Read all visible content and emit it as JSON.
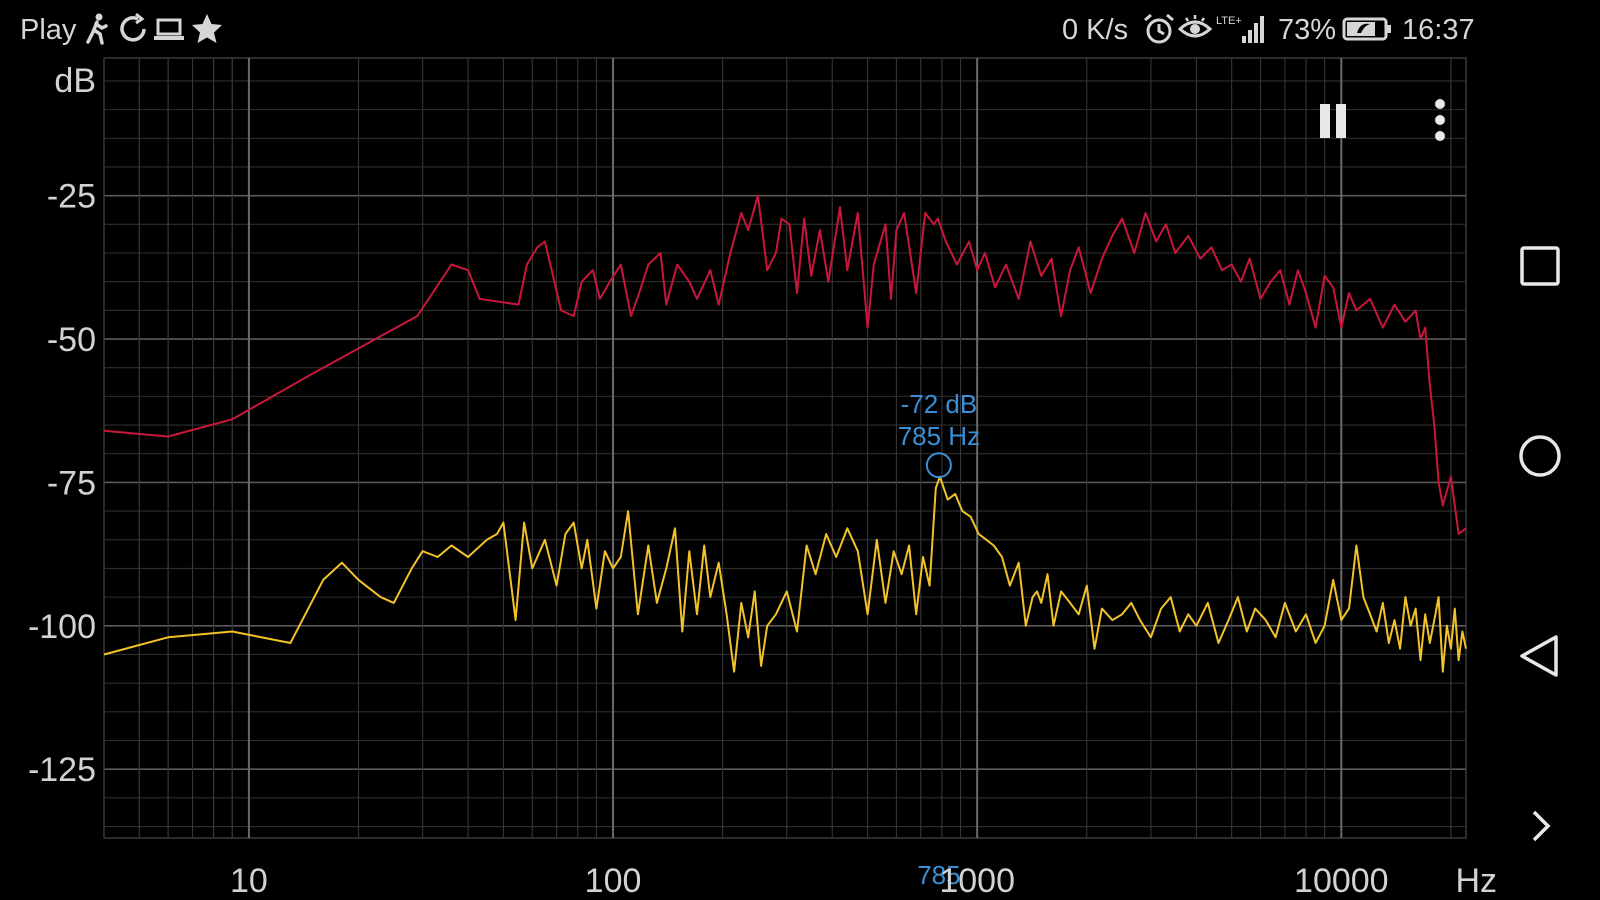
{
  "status_bar": {
    "app_label": "Play",
    "left_icons": [
      "walk-icon",
      "sync-icon",
      "laptop-icon",
      "star-icon"
    ],
    "net_speed": "0 K/s",
    "right_icons": [
      "alarm-icon",
      "eye-icon",
      "lte-signal-icon",
      "battery-icon"
    ],
    "network_label": "LTE+",
    "battery": "73%",
    "time": "16:37"
  },
  "controls": {
    "pause_icon": "pause-icon",
    "menu_icon": "more-vert-icon"
  },
  "nav_bar": {
    "icons": [
      "recents-square-icon",
      "home-circle-icon",
      "back-triangle-icon",
      "expand-chevron-icon"
    ]
  },
  "marker": {
    "db_label": "-72 dB",
    "hz_label": "785 Hz",
    "axis_label": "785",
    "freq": 785,
    "db": -72,
    "color": "#3a8fd6"
  },
  "chart_data": {
    "type": "line",
    "xscale": "log",
    "xlim": [
      4,
      22000
    ],
    "ylim": [
      -137,
      -1
    ],
    "ylabel": "dB",
    "xlabel": "Hz",
    "yticks": [
      -25,
      -50,
      -75,
      -100,
      -125
    ],
    "ytick_labels": [
      "-25",
      "-50",
      "-75",
      "-100",
      "-125"
    ],
    "xticks": [
      10,
      100,
      1000,
      10000
    ],
    "xtick_labels": [
      "10",
      "100",
      "1000",
      "10000"
    ],
    "grid": true,
    "series": [
      {
        "color": "#c8173a",
        "x": [
          4,
          6,
          9,
          15,
          29,
          36,
          40,
          43,
          55,
          58,
          62,
          65,
          72,
          78,
          82,
          88,
          92,
          98,
          105,
          112,
          118,
          125,
          135,
          140,
          150,
          162,
          170,
          185,
          195,
          210,
          225,
          235,
          250,
          265,
          280,
          290,
          305,
          320,
          335,
          350,
          370,
          390,
          420,
          440,
          470,
          500,
          520,
          560,
          580,
          600,
          630,
          680,
          720,
          760,
          780,
          820,
          880,
          950,
          1000,
          1050,
          1120,
          1200,
          1300,
          1400,
          1500,
          1600,
          1700,
          1800,
          1900,
          2050,
          2200,
          2350,
          2500,
          2700,
          2900,
          3100,
          3300,
          3500,
          3800,
          4100,
          4400,
          4700,
          5000,
          5300,
          5600,
          6000,
          6400,
          6800,
          7200,
          7600,
          8000,
          8500,
          9000,
          9500,
          10000,
          10500,
          11000,
          12000,
          13000,
          14000,
          15000,
          16000,
          16500,
          17000,
          17500,
          18000,
          18500,
          19000,
          20000,
          21000,
          22000
        ],
        "values": [
          -66,
          -67,
          -64,
          -56,
          -46,
          -37,
          -38,
          -43,
          -44,
          -37,
          -34,
          -33,
          -45,
          -46,
          -40,
          -38,
          -43,
          -40,
          -37,
          -46,
          -42,
          -37,
          -35,
          -44,
          -37,
          -40,
          -43,
          -38,
          -44,
          -35,
          -28,
          -31,
          -25,
          -38,
          -35,
          -29,
          -30,
          -42,
          -29,
          -39,
          -31,
          -40,
          -27,
          -38,
          -28,
          -48,
          -37,
          -30,
          -43,
          -31,
          -28,
          -42,
          -28,
          -30,
          -29,
          -33,
          -37,
          -33,
          -38,
          -35,
          -41,
          -37,
          -43,
          -33,
          -39,
          -36,
          -46,
          -38,
          -34,
          -42,
          -36,
          -32,
          -29,
          -35,
          -28,
          -33,
          -30,
          -35,
          -32,
          -36,
          -34,
          -38,
          -37,
          -40,
          -36,
          -43,
          -40,
          -38,
          -44,
          -38,
          -42,
          -48,
          -39,
          -41,
          -48,
          -42,
          -45,
          -43,
          -48,
          -44,
          -47,
          -45,
          -50,
          -48,
          -58,
          -65,
          -75,
          -79,
          -74,
          -84,
          -83
        ]
      },
      {
        "color": "#f2c22a",
        "x": [
          4,
          6,
          9,
          13,
          16,
          18,
          20,
          23,
          25,
          28,
          30,
          33,
          36,
          40,
          45,
          48,
          50,
          54,
          57,
          60,
          65,
          70,
          74,
          78,
          82,
          85,
          90,
          95,
          100,
          105,
          110,
          117,
          125,
          132,
          140,
          148,
          155,
          162,
          170,
          178,
          185,
          195,
          205,
          215,
          225,
          235,
          245,
          255,
          265,
          280,
          300,
          320,
          340,
          360,
          385,
          410,
          440,
          470,
          500,
          530,
          560,
          590,
          620,
          650,
          680,
          710,
          740,
          770,
          790,
          830,
          870,
          910,
          960,
          1010,
          1060,
          1110,
          1170,
          1230,
          1300,
          1360,
          1420,
          1460,
          1500,
          1560,
          1620,
          1700,
          1800,
          1900,
          2000,
          2100,
          2200,
          2350,
          2500,
          2650,
          2800,
          3000,
          3200,
          3400,
          3600,
          3800,
          4000,
          4300,
          4600,
          4900,
          5200,
          5500,
          5800,
          6200,
          6600,
          7000,
          7500,
          8000,
          8500,
          9000,
          9500,
          10000,
          10500,
          11000,
          11500,
          12000,
          12500,
          13000,
          13500,
          14000,
          14500,
          15000,
          15500,
          16000,
          16500,
          17000,
          17500,
          18000,
          18500,
          19000,
          19500,
          20000,
          20500,
          21000,
          21500,
          22000
        ],
        "values": [
          -105,
          -102,
          -101,
          -103,
          -92,
          -89,
          -92,
          -95,
          -96,
          -90,
          -87,
          -88,
          -86,
          -88,
          -85,
          -84,
          -82,
          -99,
          -82,
          -90,
          -85,
          -93,
          -84,
          -82,
          -90,
          -85,
          -97,
          -87,
          -90,
          -88,
          -80,
          -98,
          -86,
          -96,
          -90,
          -83,
          -101,
          -87,
          -98,
          -86,
          -95,
          -89,
          -98,
          -108,
          -96,
          -102,
          -94,
          -107,
          -100,
          -98,
          -94,
          -101,
          -86,
          -91,
          -84,
          -88,
          -83,
          -87,
          -98,
          -85,
          -96,
          -87,
          -91,
          -86,
          -98,
          -88,
          -93,
          -76,
          -74,
          -78,
          -77,
          -80,
          -81,
          -84,
          -85,
          -86,
          -88,
          -93,
          -89,
          -100,
          -95,
          -94,
          -96,
          -91,
          -100,
          -94,
          -96,
          -98,
          -93,
          -104,
          -97,
          -99,
          -98,
          -96,
          -99,
          -102,
          -97,
          -95,
          -101,
          -98,
          -100,
          -96,
          -103,
          -99,
          -95,
          -101,
          -97,
          -99,
          -102,
          -96,
          -101,
          -98,
          -103,
          -100,
          -92,
          -99,
          -97,
          -86,
          -95,
          -98,
          -101,
          -96,
          -103,
          -99,
          -104,
          -95,
          -100,
          -97,
          -106,
          -98,
          -103,
          -99,
          -95,
          -108,
          -100,
          -104,
          -97,
          -106,
          -101,
          -104
        ]
      }
    ]
  }
}
